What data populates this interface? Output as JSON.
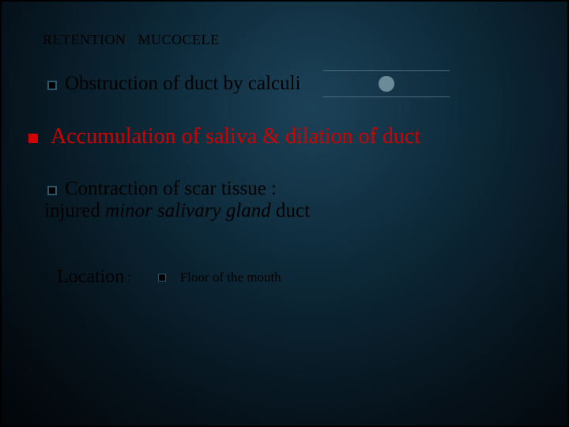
{
  "title": "RETENTION   MUCOCELE",
  "bullet1": "Obstruction of duct by calculi",
  "bullet2": "Accumulation of saliva & dilation of duct",
  "bullet3_line1": "Contraction of scar tissue :",
  "bullet3_line2_a": "injured ",
  "bullet3_line2_b": "minor salivary gland",
  "bullet3_line2_c": " duct",
  "location_label": "Location",
  "location_colon": " :",
  "location_value": "Floor of the mouth",
  "colors": {
    "red": "#d30000",
    "black": "#000000",
    "bg_center": "#1c4258",
    "bg_edge": "#020508",
    "divider": "#4a6a7a",
    "circle": "#6d8a98"
  },
  "fontsizes": {
    "title": 18,
    "body_black": 25,
    "body_red": 28,
    "location_label": 24,
    "location_value": 17
  }
}
